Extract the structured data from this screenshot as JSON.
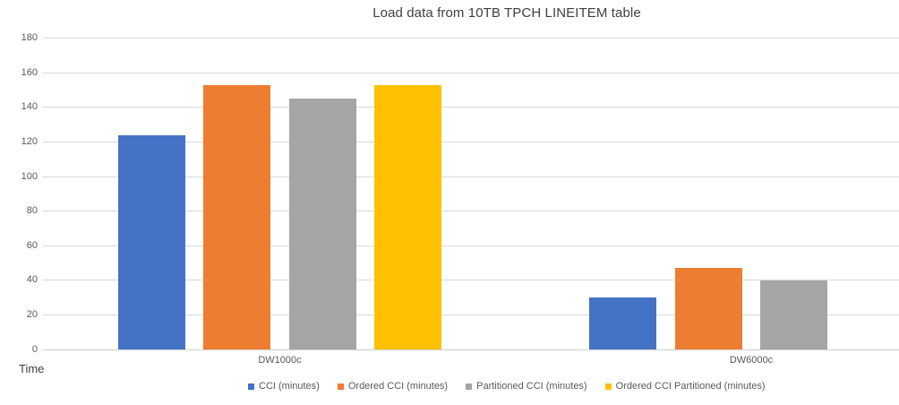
{
  "chart_data": {
    "type": "bar",
    "title": "Load data from 10TB TPCH LINEITEM table",
    "categories": [
      "DW1000c",
      "DW6000c"
    ],
    "series": [
      {
        "name": "CCI (minutes)",
        "color": "#4472C4",
        "values": [
          124,
          30
        ]
      },
      {
        "name": "Ordered CCI (minutes)",
        "color": "#ED7D31",
        "values": [
          153,
          47
        ]
      },
      {
        "name": "Partitioned CCI (minutes)",
        "color": "#A5A5A5",
        "values": [
          145,
          40
        ]
      },
      {
        "name": "Ordered CCI Partitioned (minutes)",
        "color": "#FFC000",
        "values": [
          153,
          null
        ]
      }
    ],
    "xlabel": "",
    "ylabel": "Time",
    "ylim": [
      0,
      180
    ],
    "ytick_step": 20,
    "grid": true,
    "legend_position": "bottom",
    "colors": {
      "gridline": "#d9d9d9",
      "axis_text": "#595959",
      "title_text": "#404040"
    }
  }
}
